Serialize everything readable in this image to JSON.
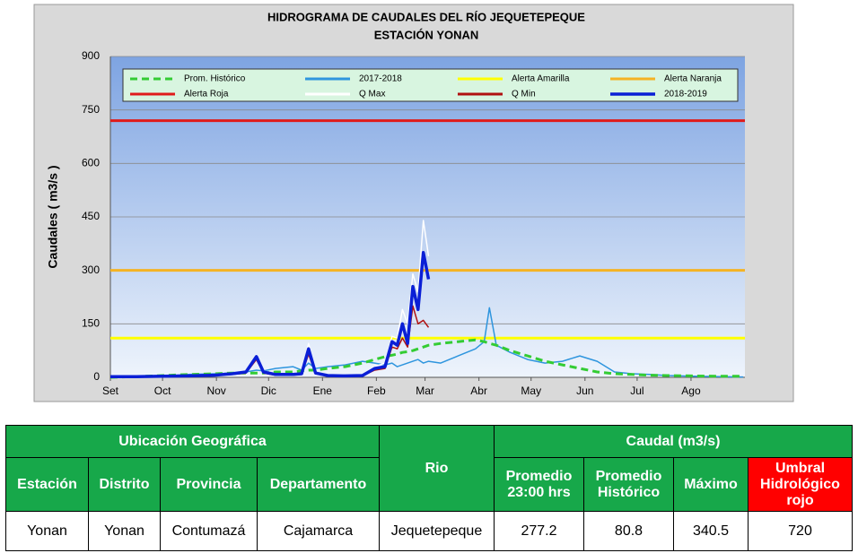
{
  "chart_data": {
    "type": "line",
    "title": "HIDROGRAMA DE CAUDALES DEL RÍO JEQUETEPEQUE",
    "subtitle": "ESTACIÓN  YONAN",
    "ylabel": "Caudales ( m3/s )",
    "ylim": [
      0,
      900
    ],
    "yticks": [
      0,
      150,
      300,
      450,
      600,
      750,
      900
    ],
    "xlim": [
      0,
      365
    ],
    "xticks": [
      {
        "value": 0,
        "label": "Set"
      },
      {
        "value": 30,
        "label": "Oct"
      },
      {
        "value": 61,
        "label": "Nov"
      },
      {
        "value": 91,
        "label": "Dic"
      },
      {
        "value": 122,
        "label": "Ene"
      },
      {
        "value": 153,
        "label": "Feb"
      },
      {
        "value": 181,
        "label": "Mar"
      },
      {
        "value": 212,
        "label": "Abr"
      },
      {
        "value": 242,
        "label": "May"
      },
      {
        "value": 273,
        "label": "Jun"
      },
      {
        "value": 303,
        "label": "Jul"
      },
      {
        "value": 334,
        "label": "Ago"
      }
    ],
    "grid": true,
    "x": [
      0,
      15,
      30,
      45,
      60,
      70,
      78,
      84,
      88,
      95,
      105,
      110,
      114,
      118,
      125,
      135,
      145,
      152,
      158,
      162,
      165,
      168,
      171,
      174,
      177,
      180,
      183,
      190,
      200,
      210,
      215,
      218,
      222,
      230,
      240,
      250,
      260,
      270,
      280,
      290,
      300,
      310,
      320,
      335,
      350,
      364
    ],
    "series": [
      {
        "name": "Prom. Histórico",
        "color": "#33cc33",
        "dash": true,
        "values": [
          0,
          2,
          5,
          8,
          10,
          12,
          12,
          12,
          12,
          15,
          15,
          18,
          20,
          20,
          25,
          30,
          40,
          50,
          58,
          62,
          65,
          70,
          72,
          75,
          80,
          85,
          90,
          95,
          100,
          105,
          100,
          95,
          90,
          75,
          60,
          45,
          35,
          25,
          15,
          10,
          8,
          6,
          5,
          4,
          3,
          3
        ]
      },
      {
        "name": "2017-2018",
        "color": "#2e95de",
        "values": [
          0,
          0,
          3,
          8,
          10,
          12,
          15,
          20,
          18,
          25,
          30,
          20,
          40,
          25,
          30,
          35,
          45,
          40,
          35,
          40,
          30,
          35,
          40,
          45,
          50,
          40,
          45,
          40,
          60,
          80,
          100,
          195,
          90,
          70,
          50,
          40,
          45,
          60,
          45,
          15,
          10,
          8,
          5,
          3,
          2,
          1
        ]
      },
      {
        "name": "Alerta Amarilla",
        "color": "#ffff00",
        "value": 110
      },
      {
        "name": "Alerta Naranja",
        "color": "#f5b324",
        "value": 300
      },
      {
        "name": "Alerta Roja",
        "color": "#e01b1b",
        "value": 720
      },
      {
        "name": "Q Max",
        "color": "#ffffff",
        "values": [
          3,
          3,
          4,
          5,
          8,
          12,
          18,
          62,
          18,
          10,
          10,
          12,
          95,
          15,
          7,
          5,
          7,
          30,
          40,
          115,
          110,
          190,
          150,
          290,
          240,
          440,
          340,
          null,
          null,
          null,
          null,
          null,
          null,
          null,
          null,
          null,
          null,
          null,
          null,
          null,
          null,
          null,
          null,
          null,
          null,
          null
        ]
      },
      {
        "name": "Q Min",
        "color": "#b01010",
        "values": [
          2,
          2,
          3,
          3,
          5,
          8,
          12,
          50,
          12,
          6,
          6,
          8,
          65,
          10,
          4,
          3,
          4,
          20,
          25,
          85,
          80,
          110,
          85,
          200,
          150,
          160,
          140,
          null,
          null,
          null,
          null,
          null,
          null,
          null,
          null,
          null,
          null,
          null,
          null,
          null,
          null,
          null,
          null,
          null,
          null,
          null
        ]
      },
      {
        "name": "2018-2019",
        "color": "#0a1fd6",
        "width": 3.5,
        "values": [
          2,
          2,
          3,
          4,
          6,
          10,
          15,
          58,
          15,
          8,
          8,
          10,
          80,
          12,
          5,
          4,
          5,
          25,
          30,
          100,
          90,
          150,
          95,
          255,
          190,
          350,
          275,
          null,
          null,
          null,
          null,
          null,
          null,
          null,
          null,
          null,
          null,
          null,
          null,
          null,
          null,
          null,
          null,
          null,
          null,
          null
        ]
      }
    ]
  },
  "table": {
    "group_location": "Ubicación Geográfica",
    "river_header": "Rio",
    "group_flow": "Caudal (m3/s)",
    "columns": [
      "Estación",
      "Distrito",
      "Provincia",
      "Departamento",
      "Promedio 23:00 hrs",
      "Promedio Histórico",
      "Máximo",
      "Umbral Hidrológico rojo"
    ],
    "row": [
      "Yonan",
      "Yonan",
      "Contumazá",
      "Cajamarca",
      "Jequetepeque",
      277.2,
      80.8,
      340.5,
      720
    ]
  }
}
